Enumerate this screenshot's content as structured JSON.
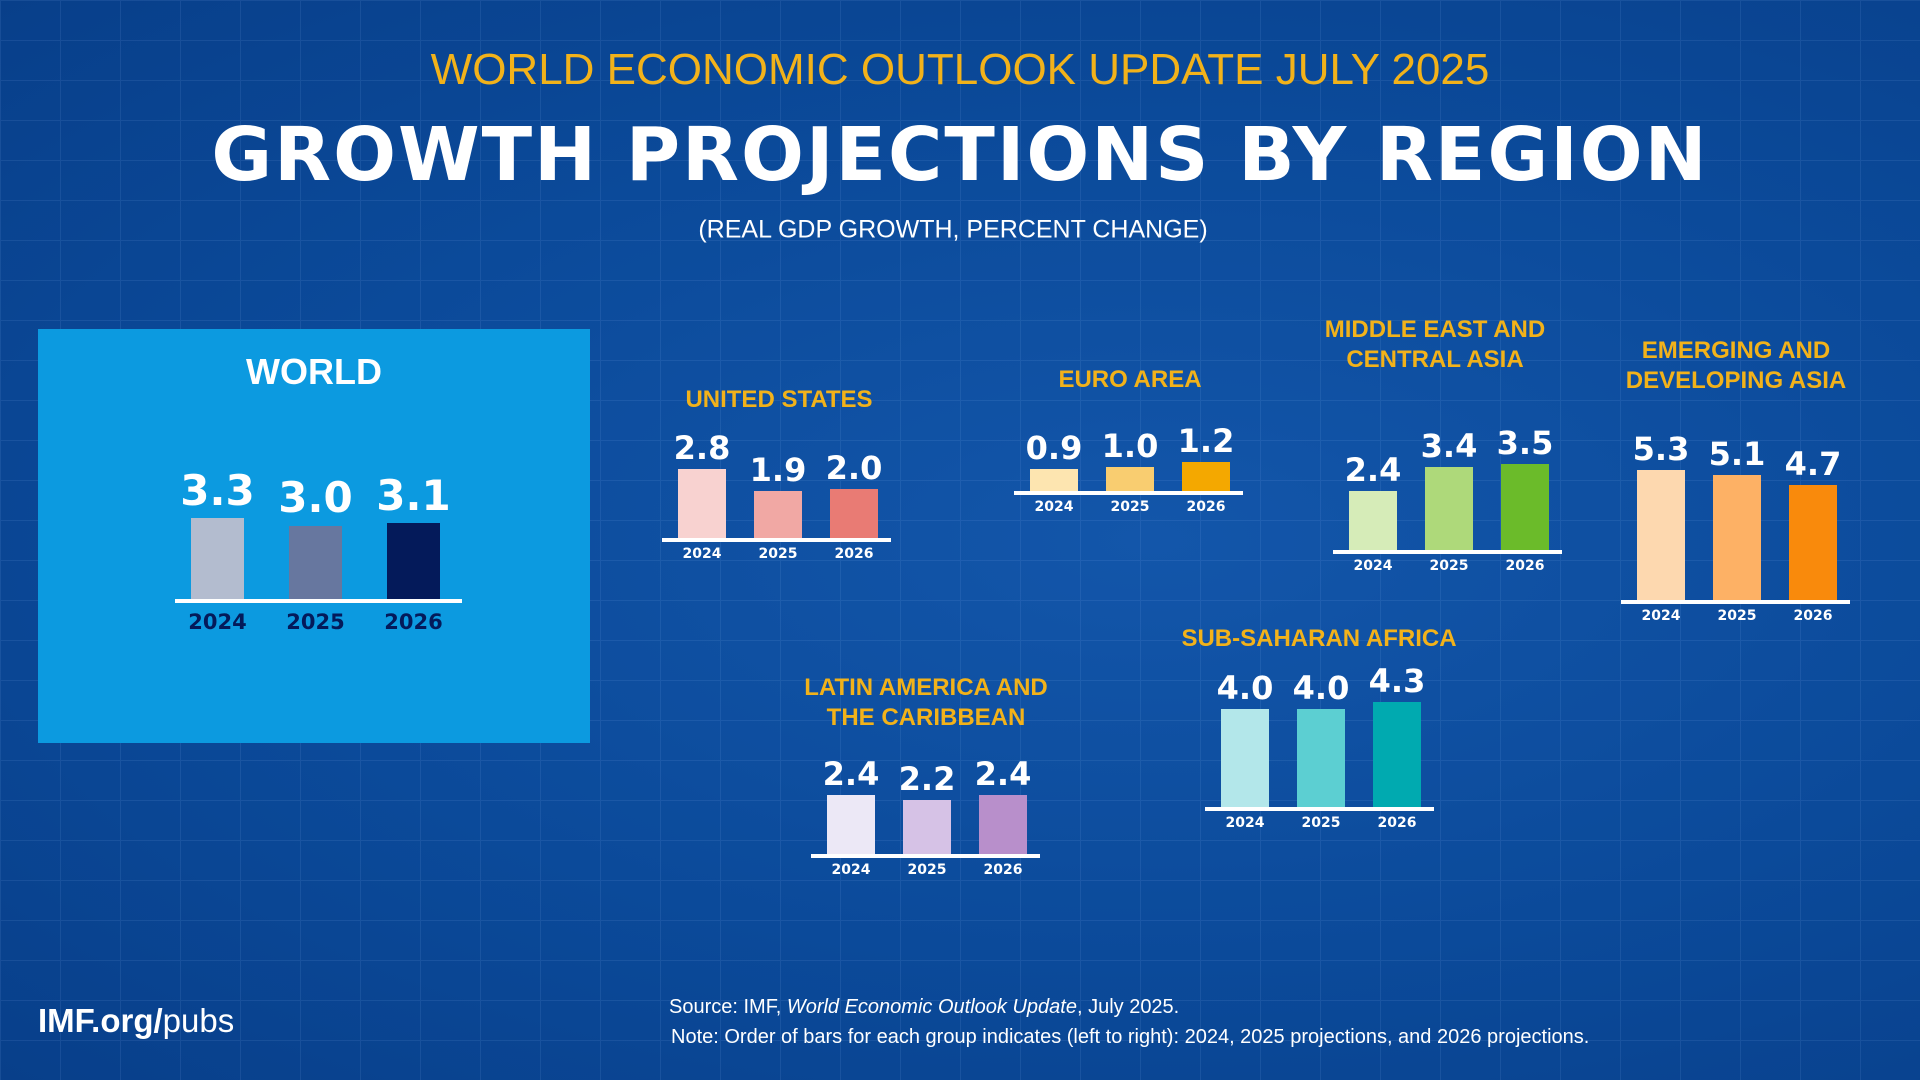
{
  "header": {
    "supertitle": "WORLD ECONOMIC OUTLOOK UPDATE JULY 2025",
    "title": "GROWTH PROJECTIONS BY REGION",
    "units": "(REAL GDP GROWTH, PERCENT CHANGE)"
  },
  "footer": {
    "site_bold": "IMF.org/",
    "site_rest": "pubs",
    "source_prefix": "Source:  IMF, ",
    "source_italic": "World Economic Outlook Update",
    "source_suffix": ", July 2025.",
    "note": "Note:  Order of bars for each group indicates (left to right): 2024, 2025 projections, and 2026 projections."
  },
  "chart_data": {
    "type": "bar",
    "categories": [
      "2024",
      "2025",
      "2026"
    ],
    "series": [
      {
        "name": "WORLD",
        "values": [
          3.3,
          3.0,
          3.1
        ],
        "colors": [
          "#b3bccf",
          "#67779f",
          "#041a5a"
        ]
      },
      {
        "name": "UNITED STATES",
        "values": [
          2.8,
          1.9,
          2.0
        ],
        "colors": [
          "#f8d2d0",
          "#f1a8a4",
          "#e97b74"
        ]
      },
      {
        "name": "EURO AREA",
        "values": [
          0.9,
          1.0,
          1.2
        ],
        "colors": [
          "#fde5b0",
          "#f9cd70",
          "#f4a800"
        ]
      },
      {
        "name": "MIDDLE EAST AND\nCENTRAL ASIA",
        "values": [
          2.4,
          3.4,
          3.5
        ],
        "colors": [
          "#d6ecb8",
          "#aed97a",
          "#6bbb2a"
        ]
      },
      {
        "name": "EMERGING AND\nDEVELOPING ASIA",
        "values": [
          5.3,
          5.1,
          4.7
        ],
        "colors": [
          "#fdd8af",
          "#fdb165",
          "#f98a0c"
        ]
      },
      {
        "name": "SUB-SAHARAN AFRICA",
        "values": [
          4.0,
          4.0,
          4.3
        ],
        "colors": [
          "#b3e7ea",
          "#5ccfd2",
          "#00aab0"
        ]
      },
      {
        "name": "LATIN AMERICA AND\nTHE CARIBBEAN",
        "values": [
          2.4,
          2.2,
          2.4
        ],
        "colors": [
          "#ece8f6",
          "#d6c2e6",
          "#b88fcb"
        ]
      }
    ],
    "title": "GROWTH PROJECTIONS BY REGION",
    "ylabel": "",
    "xlabel": "",
    "grid": false,
    "colors": {
      "background": "#0b4a9a",
      "world_panel": "#0c9ae0",
      "region_title": "#f2b21a"
    }
  }
}
